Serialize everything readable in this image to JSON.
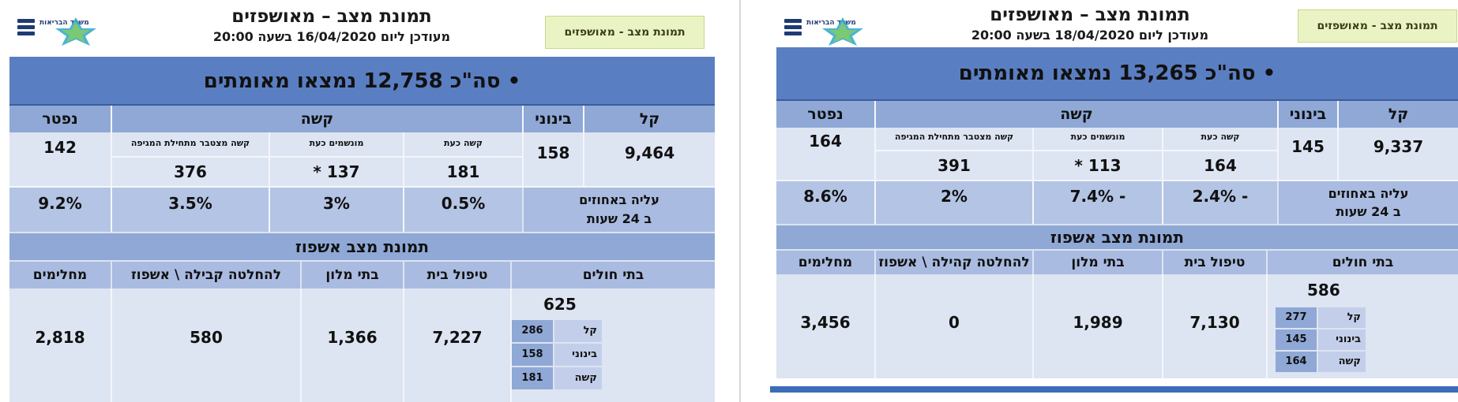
{
  "slides": [
    {
      "logo_text": "משרד הבריאות",
      "title": "תמונת מצב – מאושפזים",
      "updated": "מעודכן ליום 16/04/2020 בשעה 20:00",
      "tag": "תמונת מצב - מאושפזים",
      "total": "•  סה\"כ 12,758 נמצאו מאומתים",
      "headers": {
        "mild": "קל",
        "moderate": "בינוני",
        "severe": "קשה",
        "dead": "נפטר"
      },
      "subheaders": {
        "severe_now": "קשה כעת",
        "ventilated_now": "מונשמים כעת",
        "severe_cumulative": "קשה מצטבר מתחילת המגיפה"
      },
      "values": {
        "mild": "9,464",
        "moderate": "158",
        "dead": "142",
        "severe_now": "181",
        "ventilated_now": "137 *",
        "severe_cumulative": "376"
      },
      "increase_label_1": "עליה באחוזים",
      "increase_label_2": "ב 24 שעות",
      "increase": {
        "severe_now": "0.5%",
        "ventilated_now": "3%",
        "severe_cumulative": "3.5%",
        "dead": "9.2%"
      },
      "section_title": "תמונת מצב אשפוז",
      "care_headers": {
        "hospitals": "בתי חולים",
        "home": "טיפול בית",
        "hotels": "בתי מלון",
        "pending": "להחלטה קבילה \\ אשפוז",
        "recovered": "מחלימים"
      },
      "care_values": {
        "hospitals": "625",
        "home": "7,227",
        "hotels": "1,366",
        "pending": "580",
        "recovered": "2,818"
      },
      "breakdown": [
        {
          "label": "קל",
          "value": "286"
        },
        {
          "label": "בינוני",
          "value": "158"
        },
        {
          "label": "קשה",
          "value": "181"
        }
      ]
    },
    {
      "logo_text": "משרד הבריאות",
      "title": "תמונת מצב – מאושפזים",
      "updated": "מעודכן ליום 18/04/2020 בשעה 20:00",
      "tag": "תמונת מצב - מאושפזים",
      "total": "•  סה\"כ 13,265 נמצאו מאומתים",
      "headers": {
        "mild": "קל",
        "moderate": "בינוני",
        "severe": "קשה",
        "dead": "נפטר"
      },
      "subheaders": {
        "severe_now": "קשה כעת",
        "ventilated_now": "מונשמים כעת",
        "severe_cumulative": "קשה מצטבר מתחילת המגיפה"
      },
      "values": {
        "mild": "9,337",
        "moderate": "145",
        "dead": "164",
        "severe_now": "164",
        "ventilated_now": "113 *",
        "severe_cumulative": "391"
      },
      "increase_label_1": "עליה באחוזים",
      "increase_label_2": "ב 24 שעות",
      "increase": {
        "severe_now": "- 2.4%",
        "ventilated_now": "- 7.4%",
        "severe_cumulative": "2%",
        "dead": "8.6%"
      },
      "section_title": "תמונת מצב אשפוז",
      "care_headers": {
        "hospitals": "בתי חולים",
        "home": "טיפול בית",
        "hotels": "בתי מלון",
        "pending": "להחלטה קהילה \\ אשפוז",
        "recovered": "מחלימים"
      },
      "care_values": {
        "hospitals": "586",
        "home": "7,130",
        "hotels": "1,989",
        "pending": "0",
        "recovered": "3,456"
      },
      "breakdown": [
        {
          "label": "קל",
          "value": "277"
        },
        {
          "label": "בינוני",
          "value": "145"
        },
        {
          "label": "קשה",
          "value": "164"
        }
      ]
    }
  ]
}
